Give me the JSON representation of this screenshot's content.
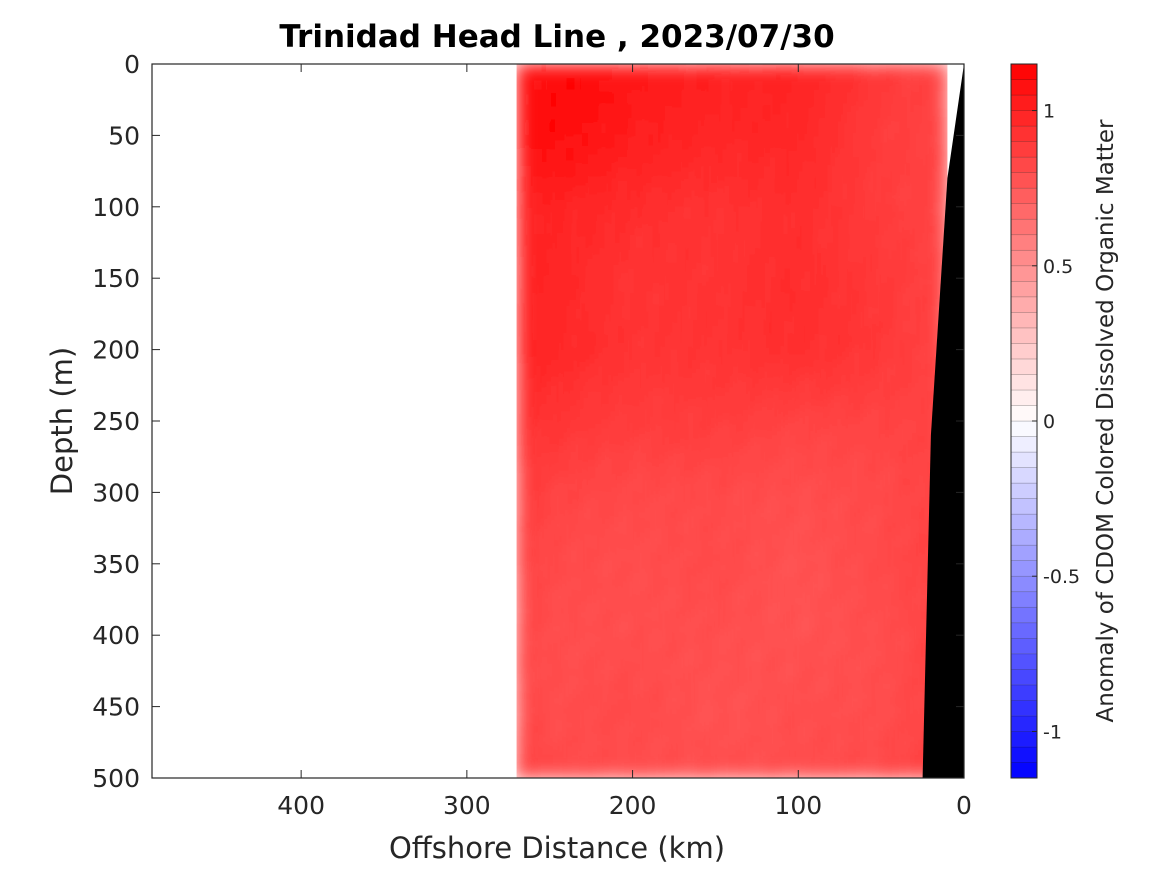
{
  "chart_data": {
    "type": "heatmap",
    "title": "Trinidad Head Line , 2023/07/30",
    "xlabel": "Offshore Distance (km)",
    "ylabel": "Depth (m)",
    "xlim": [
      490,
      0
    ],
    "ylim": [
      0,
      500
    ],
    "x_reversed": true,
    "y_reversed": true,
    "x_ticks": [
      400,
      300,
      200,
      100,
      0
    ],
    "y_ticks": [
      0,
      50,
      100,
      150,
      200,
      250,
      300,
      350,
      400,
      450,
      500
    ],
    "data_extent_x": [
      270,
      10
    ],
    "bathymetry": {
      "color": "#000000",
      "profile": [
        {
          "distance": 0,
          "depth": 0
        },
        {
          "distance": 10,
          "depth": 80
        },
        {
          "distance": 20,
          "depth": 260
        },
        {
          "distance": 25,
          "depth": 500
        }
      ]
    },
    "colorbar": {
      "label": "Anomaly of CDOM Colored Dissolved Organic Matter",
      "limits": [
        -1.15,
        1.15
      ],
      "ticks": [
        -1,
        -0.5,
        0,
        0.5,
        1
      ],
      "tick_labels": [
        "-1",
        "-0.5",
        "0",
        "0.5",
        "1"
      ],
      "colors": {
        "low": "#0000ff",
        "mid": "#ffffff",
        "high": "#ff0000"
      },
      "levels": 46
    },
    "field_summary": {
      "depths": [
        0,
        50,
        100,
        150,
        200,
        250,
        300,
        350,
        400,
        450,
        500
      ],
      "distances": [
        270,
        250,
        200,
        150,
        100,
        50,
        15
      ],
      "values": [
        [
          1.05,
          1.12,
          1.05,
          1.0,
          1.0,
          0.9,
          0.85
        ],
        [
          1.05,
          1.12,
          1.02,
          0.98,
          0.98,
          0.88,
          0.85
        ],
        [
          1.0,
          1.0,
          0.95,
          0.92,
          0.95,
          0.88,
          0.85
        ],
        [
          1.0,
          0.98,
          0.92,
          0.92,
          0.95,
          0.9,
          0.85
        ],
        [
          1.0,
          0.98,
          0.92,
          0.92,
          0.95,
          0.9,
          0.85
        ],
        [
          0.95,
          0.92,
          0.88,
          0.88,
          0.85,
          0.85,
          0.85
        ],
        [
          0.9,
          0.85,
          0.82,
          0.82,
          0.8,
          0.82,
          0.85
        ],
        [
          0.88,
          0.82,
          0.8,
          0.82,
          0.78,
          0.82,
          0.85
        ],
        [
          0.85,
          0.8,
          0.8,
          0.8,
          0.78,
          0.8,
          0.85
        ],
        [
          0.85,
          0.8,
          0.82,
          0.78,
          0.8,
          0.8,
          0.85
        ],
        [
          0.88,
          0.82,
          0.8,
          0.8,
          0.8,
          0.82,
          0.85
        ]
      ]
    }
  }
}
